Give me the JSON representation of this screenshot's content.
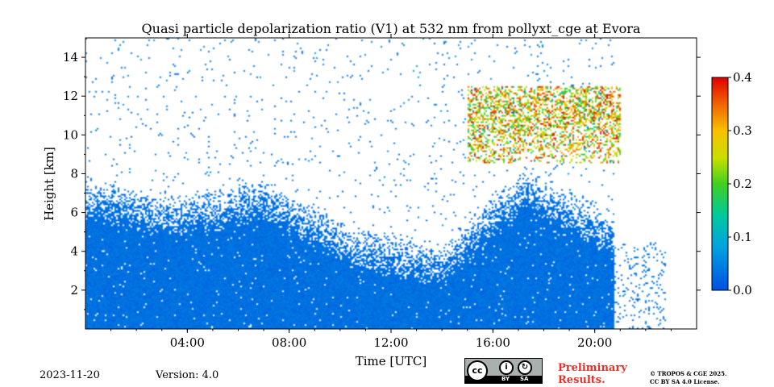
{
  "chart_data": {
    "type": "heatmap",
    "title": "Quasi particle depolarization ratio (V1) at 532 nm from pollyxt_cge at Evora",
    "xlabel": "Time [UTC]",
    "ylabel": "Height [km]",
    "xlim": [
      0,
      24
    ],
    "ylim": [
      0,
      15
    ],
    "xticks": [
      {
        "value": 4,
        "label": "04:00"
      },
      {
        "value": 8,
        "label": "08:00"
      },
      {
        "value": 12,
        "label": "12:00"
      },
      {
        "value": 16,
        "label": "16:00"
      },
      {
        "value": 20,
        "label": "20:00"
      }
    ],
    "yticks": [
      {
        "value": 2,
        "label": "2"
      },
      {
        "value": 4,
        "label": "4"
      },
      {
        "value": 6,
        "label": "6"
      },
      {
        "value": 8,
        "label": "8"
      },
      {
        "value": 10,
        "label": "10"
      },
      {
        "value": 12,
        "label": "12"
      },
      {
        "value": 14,
        "label": "14"
      }
    ],
    "colorbar": {
      "min": 0.0,
      "max": 0.4,
      "colormap": "jet",
      "ticks": [
        {
          "value": 0.0,
          "label": "0.0"
        },
        {
          "value": 0.1,
          "label": "0.1"
        },
        {
          "value": 0.2,
          "label": "0.2"
        },
        {
          "value": 0.3,
          "label": "0.3"
        },
        {
          "value": 0.4,
          "label": "0.4"
        }
      ]
    },
    "features": [
      {
        "name": "boundary layer",
        "time_range": [
          0,
          20.8
        ],
        "height_top_km": [
          6.5,
          5.5,
          6.5,
          4.0,
          3.0,
          7.0,
          4.5
        ],
        "depol_ratio": 0.02
      },
      {
        "name": "high cloud",
        "time_range": [
          15.0,
          21.0
        ],
        "height_range_km": [
          8.5,
          12.5
        ],
        "depol_ratio": [
          0.15,
          0.4
        ]
      },
      {
        "name": "profiles after 20:45",
        "time_range": [
          20.8,
          22.8
        ],
        "height_range_km": [
          0,
          4.5
        ],
        "depol_ratio": 0.02
      }
    ]
  },
  "footer": {
    "date": "2023-11-20",
    "version": "Version: 4.0",
    "preliminary_line1": "Preliminary",
    "preliminary_line2": "Results.",
    "copyright_line1": "© TROPOS & CGE 2025.",
    "copyright_line2": "CC BY SA 4.0 License.",
    "license_badge": {
      "cc": "cc",
      "by": "BY",
      "sa": "SA"
    }
  }
}
